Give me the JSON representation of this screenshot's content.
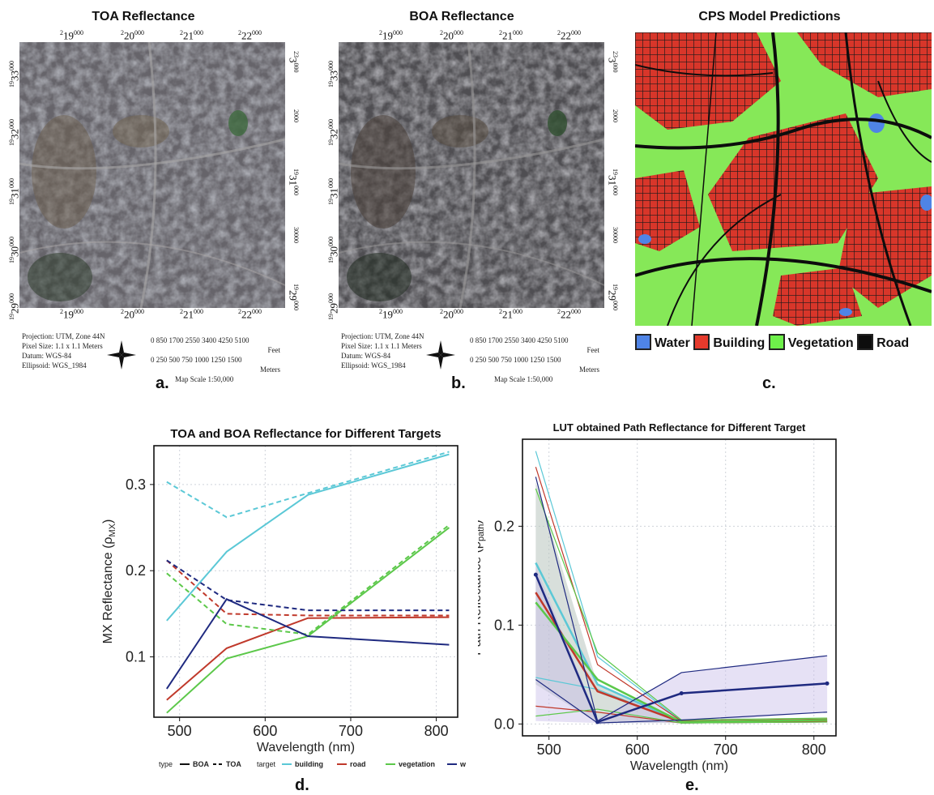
{
  "panels": {
    "a": {
      "title": "TOA Reflectance",
      "letter": "a."
    },
    "b": {
      "title": "BOA Reflectance",
      "letter": "b."
    },
    "c": {
      "title": "CPS Model Predictions",
      "letter": "c."
    },
    "d": {
      "letter": "d."
    },
    "e": {
      "letter": "e."
    }
  },
  "map_coords": {
    "x_labels": [
      [
        "2",
        "19",
        "000"
      ],
      [
        "2",
        "20",
        "000"
      ],
      [
        "2",
        "21",
        "000"
      ],
      [
        "2",
        "22",
        "000"
      ]
    ],
    "y_left": [
      [
        "19",
        "33",
        "000"
      ],
      [
        "19",
        "32",
        "000"
      ],
      [
        "19",
        "31",
        "000"
      ],
      [
        "19",
        "30",
        "000"
      ],
      [
        "19",
        "29",
        "000"
      ]
    ],
    "y_right": [
      [
        "23",
        "3",
        "000"
      ],
      [
        "2",
        "",
        "000"
      ],
      [
        "19",
        "31",
        "000"
      ],
      [
        "30",
        "",
        "000"
      ],
      [
        "19",
        "29",
        "000"
      ]
    ]
  },
  "map_info": {
    "projection": "Projection: UTM, Zone 44N",
    "pixel_size": "Pixel Size: 1.1 x 1.1 Meters",
    "datum": "Datum:     WGS-84",
    "ellipsoid": "Ellipsoid:  WGS_1984",
    "feet_ticks": "0   850  1700 2550 3400 4250 5100",
    "feet_unit": "Feet",
    "meter_ticks": "0   250  500   750  1000 1250 1500",
    "meter_unit": "Meters",
    "scale": "Map Scale 1:50,000"
  },
  "class_legend": [
    {
      "label": "Water",
      "color": "#4f84e6"
    },
    {
      "label": "Building",
      "color": "#e53a2c"
    },
    {
      "label": "Vegetation",
      "color": "#6ef04a"
    },
    {
      "label": "Road",
      "color": "#0d0d0d"
    }
  ],
  "chart_data": [
    {
      "type": "line",
      "title": "TOA and BOA Reflectance for Different Targets",
      "xlabel": "Wavelength (nm)",
      "ylabel": "MX Reflectance (ρ",
      "ylabel_sub": "MX",
      "ylabel_end": ")",
      "xlim": [
        470,
        825
      ],
      "ylim": [
        0.03,
        0.345
      ],
      "xticks": [
        500,
        600,
        700,
        800
      ],
      "yticks": [
        0.1,
        0.2,
        0.3
      ],
      "x": [
        485,
        555,
        650,
        815
      ],
      "grid": true,
      "series": [
        {
          "target": "building",
          "type": "BOA",
          "color": "#5bc8d6",
          "values": [
            0.142,
            0.222,
            0.288,
            0.335
          ]
        },
        {
          "target": "building",
          "type": "TOA",
          "color": "#5bc8d6",
          "values": [
            0.303,
            0.262,
            0.29,
            0.338
          ]
        },
        {
          "target": "road",
          "type": "BOA",
          "color": "#c0392b",
          "values": [
            0.05,
            0.11,
            0.145,
            0.146
          ]
        },
        {
          "target": "road",
          "type": "TOA",
          "color": "#c0392b",
          "values": [
            0.212,
            0.15,
            0.148,
            0.148
          ]
        },
        {
          "target": "vegetation",
          "type": "BOA",
          "color": "#5cc84a",
          "values": [
            0.035,
            0.098,
            0.124,
            0.25
          ]
        },
        {
          "target": "vegetation",
          "type": "TOA",
          "color": "#5cc84a",
          "values": [
            0.197,
            0.138,
            0.126,
            0.253
          ]
        },
        {
          "target": "water",
          "type": "BOA",
          "color": "#1f2a80",
          "values": [
            0.063,
            0.167,
            0.124,
            0.114
          ]
        },
        {
          "target": "water",
          "type": "TOA",
          "color": "#1f2a80",
          "values": [
            0.212,
            0.166,
            0.154,
            0.154
          ]
        }
      ],
      "legend": {
        "type_title": "type",
        "type_items": [
          "BOA",
          "TOA"
        ],
        "target_title": "target",
        "target_items": [
          {
            "label": "building",
            "color": "#5bc8d6"
          },
          {
            "label": "road",
            "color": "#c0392b"
          },
          {
            "label": "vegetation",
            "color": "#5cc84a"
          },
          {
            "label": "water",
            "color": "#1f2a80"
          }
        ],
        "placement": "bottom"
      }
    },
    {
      "type": "line",
      "title": "LUT obtained Path Reflectance for Different Target",
      "xlabel": "Wavelength (nm)",
      "ylabel": "Path Reflectance (ρ",
      "ylabel_sub": "path",
      "ylabel_end": ")",
      "xlim": [
        470,
        825
      ],
      "ylim": [
        -0.012,
        0.288
      ],
      "xticks": [
        500,
        600,
        700,
        800
      ],
      "yticks": [
        0.0,
        0.1,
        0.2
      ],
      "x": [
        485,
        555,
        650,
        815
      ],
      "grid": true,
      "bands": [
        {
          "color": "#b8c4bd",
          "opacity": 0.55,
          "upper": [
            0.245,
            0.04,
            0.003,
            0.003
          ],
          "lower": [
            0.04,
            0.001,
            0.001,
            0.001
          ]
        },
        {
          "color": "#c8bde8",
          "opacity": 0.45,
          "upper": [
            0.16,
            0.005,
            0.052,
            0.069
          ],
          "lower": [
            0.003,
            0.001,
            0.001,
            0.012
          ]
        }
      ],
      "series": [
        {
          "color": "#5bc8d6",
          "width": 1.2,
          "values": [
            0.276,
            0.068,
            0.003,
            0.004
          ]
        },
        {
          "color": "#5bc8d6",
          "width": 2.5,
          "values": [
            0.163,
            0.04,
            0.002,
            0.003
          ]
        },
        {
          "color": "#5bc8d6",
          "width": 1.2,
          "values": [
            0.047,
            0.035,
            0.001,
            0.002
          ]
        },
        {
          "color": "#c0392b",
          "width": 1.2,
          "values": [
            0.26,
            0.06,
            0.003,
            0.005
          ]
        },
        {
          "color": "#c0392b",
          "width": 2.5,
          "values": [
            0.133,
            0.033,
            0.002,
            0.003
          ]
        },
        {
          "color": "#c0392b",
          "width": 1.2,
          "values": [
            0.018,
            0.012,
            0.001,
            0.002
          ]
        },
        {
          "color": "#5cc84a",
          "width": 1.2,
          "values": [
            0.238,
            0.072,
            0.004,
            0.006
          ]
        },
        {
          "color": "#5cc84a",
          "width": 2.5,
          "values": [
            0.123,
            0.045,
            0.002,
            0.004
          ]
        },
        {
          "color": "#5cc84a",
          "width": 1.2,
          "values": [
            0.008,
            0.015,
            0.001,
            0.002
          ]
        },
        {
          "color": "#1f2a80",
          "width": 1.2,
          "values": [
            0.25,
            0.003,
            0.052,
            0.069
          ]
        },
        {
          "color": "#1f2a80",
          "width": 2.5,
          "values": [
            0.151,
            0.002,
            0.031,
            0.041
          ],
          "markers": true
        },
        {
          "color": "#1f2a80",
          "width": 1.2,
          "values": [
            0.045,
            0.001,
            0.004,
            0.012
          ]
        }
      ]
    }
  ]
}
